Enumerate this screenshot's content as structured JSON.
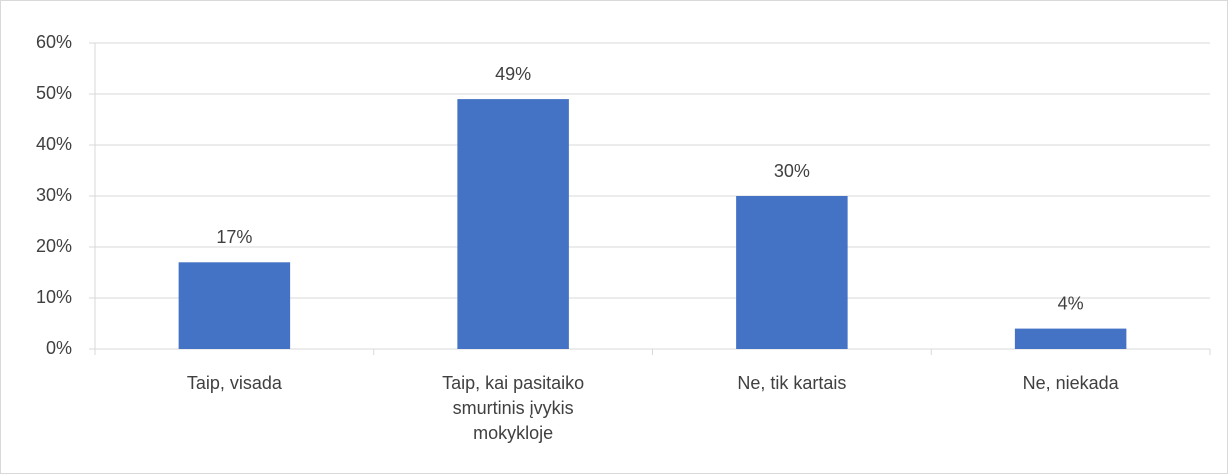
{
  "chart_data": {
    "type": "bar",
    "categories": [
      "Taip, visada",
      "Taip, kai pasitaiko smurtinis įvykis mokykloje",
      "Ne, tik kartais",
      "Ne, niekada"
    ],
    "values": [
      17,
      49,
      30,
      4
    ],
    "value_labels": [
      "17%",
      "49%",
      "30%",
      "4%"
    ],
    "color": "#4472c4",
    "ylim": [
      0,
      60
    ],
    "yticks": [
      {
        "value": 0,
        "label": "0%"
      },
      {
        "value": 10,
        "label": "10%"
      },
      {
        "value": 20,
        "label": "20%"
      },
      {
        "value": 30,
        "label": "30%"
      },
      {
        "value": 40,
        "label": "40%"
      },
      {
        "value": 50,
        "label": "50%"
      },
      {
        "value": 60,
        "label": "60%"
      }
    ],
    "grid": true
  }
}
